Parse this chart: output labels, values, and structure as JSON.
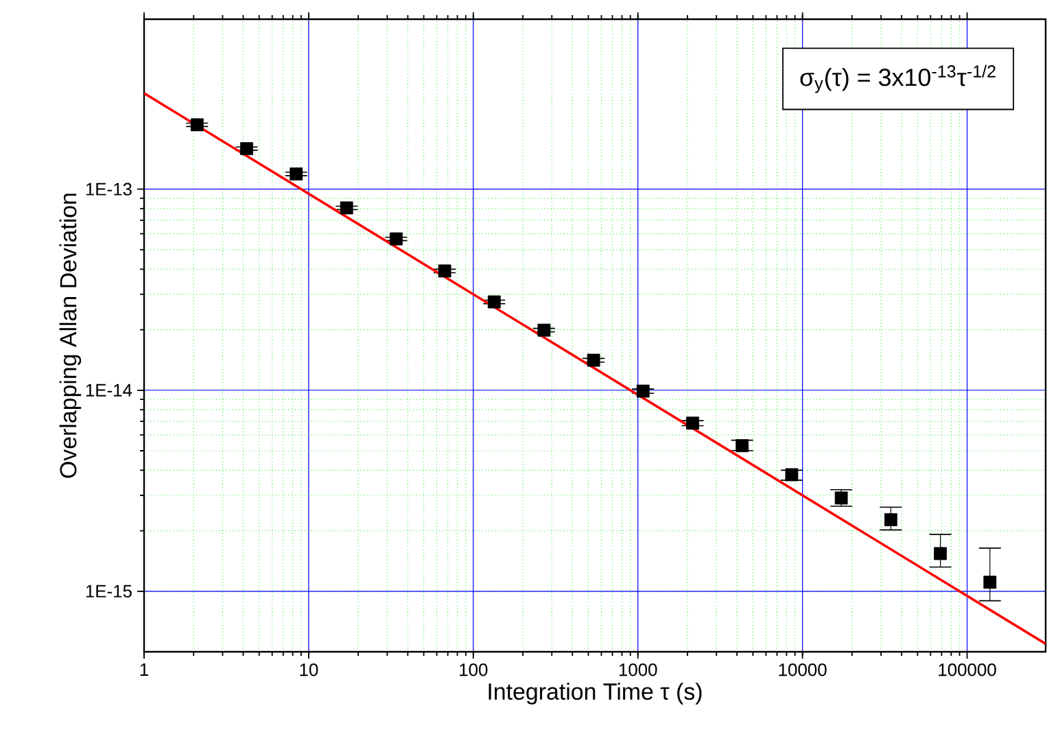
{
  "chart_data": {
    "type": "scatter",
    "xlabel": "Integration Time τ (s)",
    "ylabel": "Overlapping Allan Deviation",
    "log": "xy",
    "grid": true,
    "xlim": [
      1,
      300000
    ],
    "ylim": [
      5e-16,
      7e-13
    ],
    "xticks": [
      1,
      10,
      100,
      1000,
      10000,
      100000
    ],
    "yticks": [
      {
        "value": 1e-15,
        "label": "1E-15"
      },
      {
        "value": 1e-14,
        "label": "1E-14"
      },
      {
        "value": 1e-13,
        "label": "1E-13"
      }
    ],
    "annotations": [
      "σ$_{y}$(τ) = 3x10$^{-13}$τ$^{-1/2}$"
    ],
    "series": [
      {
        "color": "#000000",
        "marker": "square",
        "x": [
          2.1,
          4.2,
          8.4,
          17,
          34,
          67,
          134,
          269,
          538,
          1075,
          2150,
          4300,
          8600,
          17200,
          34400,
          68800,
          137600
        ],
        "values": [
          2.09e-13,
          1.59e-13,
          1.19e-13,
          8.07e-14,
          5.66e-14,
          3.92e-14,
          2.75e-14,
          1.99e-14,
          1.41e-14,
          9.9e-15,
          6.86e-15,
          5.3e-15,
          3.8e-15,
          2.91e-15,
          2.27e-15,
          1.54e-15,
          1.11e-15
        ],
        "errors": [
          4e-15,
          3e-15,
          2.4e-15,
          1.6e-15,
          1.1e-15,
          8e-16,
          5.5e-16,
          4e-16,
          3e-16,
          2.5e-16,
          2e-16,
          [
            5.01e-15,
            5.64e-15
          ],
          [
            3.57e-15,
            4e-15
          ],
          [
            2.65e-15,
            3.2e-15
          ],
          [
            2.02e-15,
            2.62e-15
          ],
          [
            1.32e-15,
            1.92e-15
          ],
          [
            8.97e-16,
            1.64e-15
          ]
        ]
      },
      {
        "type": "line",
        "color": "#ff0000",
        "marker": "none",
        "line_style": "solid",
        "x": [
          1,
          300000
        ],
        "values": [
          3e-13,
          5.48e-16
        ]
      }
    ]
  }
}
